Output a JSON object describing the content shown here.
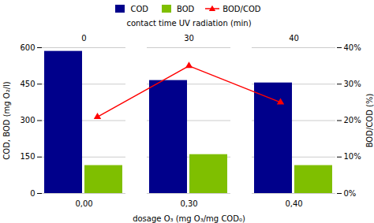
{
  "chart_data": {
    "type": "bar",
    "categories": [
      "0,00",
      "0,30",
      "0,40"
    ],
    "x2_categories": [
      "0",
      "30",
      "40"
    ],
    "xlabel": "dosage O₃ (mg O₃/mg COD₀)",
    "x2label": "contact time UV radiation (min)",
    "ylabel": "COD, BOD (mg O₂/l)",
    "y2label": "BOD/COD (%)",
    "ylim": [
      0,
      600
    ],
    "yticks": [
      0,
      150,
      300,
      450,
      600
    ],
    "y2lim": [
      0.0,
      0.4
    ],
    "y2ticks": [
      {
        "value": 0.0,
        "label": "0%"
      },
      {
        "value": 0.1,
        "label": "10%"
      },
      {
        "value": 0.2,
        "label": "20%"
      },
      {
        "value": 0.3,
        "label": "30%"
      },
      {
        "value": 0.4,
        "label": "40%"
      }
    ],
    "grid": true,
    "legend": "top",
    "series": [
      {
        "name": "COD",
        "type": "bar",
        "color": "#00008B",
        "values": [
          585,
          465,
          455
        ]
      },
      {
        "name": "BOD",
        "type": "bar",
        "color": "#7FBF00",
        "values": [
          115,
          160,
          115
        ]
      },
      {
        "name": "BOD/COD",
        "type": "line",
        "axis": "y2",
        "color": "#FF0000",
        "marker": "triangle",
        "values": [
          0.21,
          0.35,
          0.25
        ]
      }
    ]
  }
}
